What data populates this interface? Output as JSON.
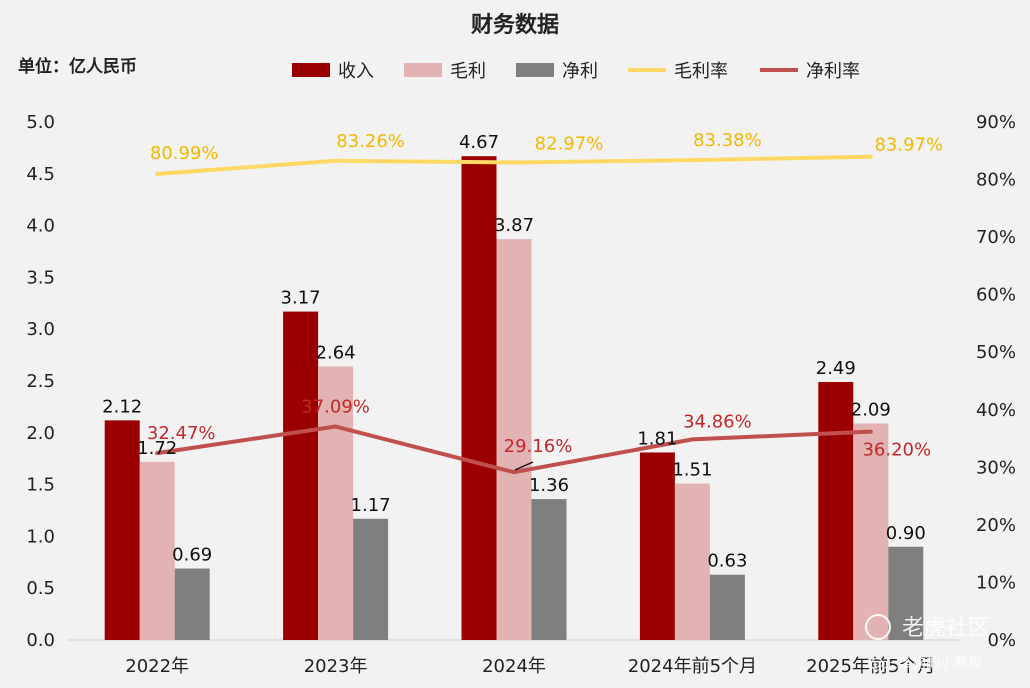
{
  "chart_data": {
    "type": "bar",
    "title": "财务数据",
    "unit_label": "单位：亿人民币",
    "categories": [
      "2022年",
      "2023年",
      "2024年",
      "2024年前5个月",
      "2025年前5个月"
    ],
    "ylim_left": [
      0,
      5.0
    ],
    "ylim_right": [
      0,
      90
    ],
    "left_ticks": [
      "0.0",
      "0.5",
      "1.0",
      "1.5",
      "2.0",
      "2.5",
      "3.0",
      "3.5",
      "4.0",
      "4.5",
      "5.0"
    ],
    "right_ticks": [
      "0%",
      "10%",
      "20%",
      "30%",
      "40%",
      "50%",
      "60%",
      "70%",
      "80%",
      "90%"
    ],
    "series": [
      {
        "name": "收入",
        "kind": "bar",
        "color": "#9b0000",
        "values": [
          2.12,
          3.17,
          4.67,
          1.81,
          2.49
        ],
        "labels": [
          "2.12",
          "3.17",
          "4.67",
          "1.81",
          "2.49"
        ]
      },
      {
        "name": "毛利",
        "kind": "bar",
        "color": "#e3b3b3",
        "values": [
          1.72,
          2.64,
          3.87,
          1.51,
          2.09
        ],
        "labels": [
          "1.72",
          "2.64",
          "3.87",
          "1.51",
          "2.09"
        ]
      },
      {
        "name": "净利",
        "kind": "bar",
        "color": "#7f7f7f",
        "values": [
          0.69,
          1.17,
          1.36,
          0.63,
          0.9
        ],
        "labels": [
          "0.69",
          "1.17",
          "1.36",
          "0.63",
          "0.90"
        ]
      },
      {
        "name": "毛利率",
        "kind": "line",
        "axis": "right",
        "color": "#ffd966",
        "label_color": "#f2b800",
        "values": [
          80.99,
          83.26,
          82.97,
          83.38,
          83.97
        ],
        "labels": [
          "80.99%",
          "83.26%",
          "82.97%",
          "83.38%",
          "83.97%"
        ]
      },
      {
        "name": "净利率",
        "kind": "line",
        "axis": "right",
        "color": "#c0504d",
        "label_color": "#c0282a",
        "values": [
          32.47,
          37.09,
          29.16,
          34.86,
          36.2
        ],
        "labels": [
          "32.47%",
          "37.09%",
          "29.16%",
          "34.86%",
          "36.20%"
        ]
      }
    ],
    "legend_position": "top",
    "grid": false
  },
  "watermark": {
    "brand": "老虎社区",
    "user": "@三条狗的小熊猫"
  }
}
